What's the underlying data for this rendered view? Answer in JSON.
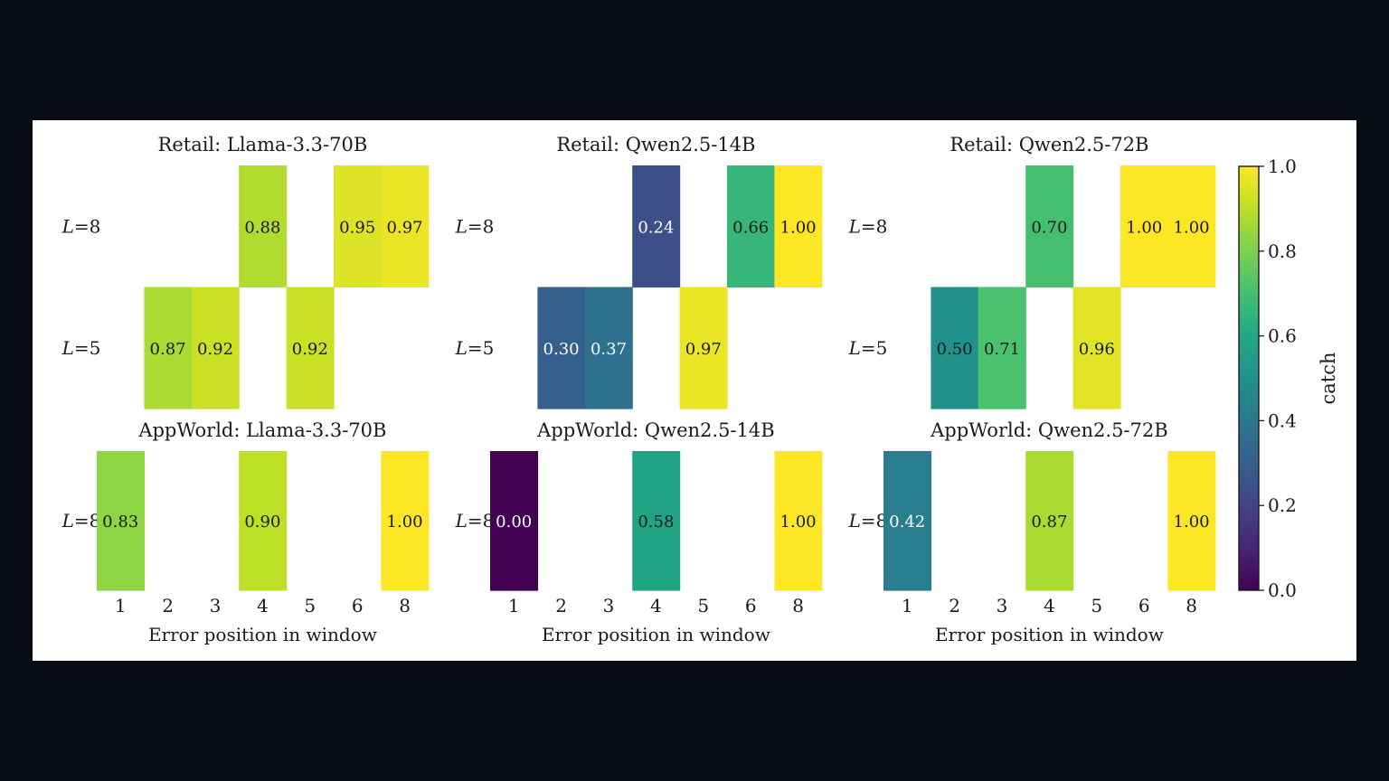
{
  "chart_data": {
    "type": "heatmap",
    "colormap": "viridis",
    "vmin": 0.0,
    "vmax": 1.0,
    "x_categories": [
      "1",
      "2",
      "3",
      "4",
      "5",
      "6",
      "8"
    ],
    "xlabel": "Error position in window",
    "colorbar": {
      "label": "catch",
      "ticks": [
        "0.0",
        "0.2",
        "0.4",
        "0.6",
        "0.8",
        "1.0"
      ]
    },
    "panels": [
      {
        "title": "Retail: Llama-3.3-70B",
        "rows": [
          {
            "label": "L",
            "value_label": "8",
            "values": [
              null,
              null,
              null,
              0.88,
              null,
              0.95,
              0.97
            ],
            "texts": [
              "",
              "",
              "",
              "0.88",
              "",
              "0.95",
              "0.97"
            ]
          },
          {
            "label": "L",
            "value_label": "5",
            "values": [
              null,
              0.87,
              0.92,
              null,
              0.92,
              null,
              null
            ],
            "texts": [
              "",
              "0.87",
              "0.92",
              "",
              "0.92",
              "",
              ""
            ]
          }
        ]
      },
      {
        "title": "Retail: Qwen2.5-14B",
        "rows": [
          {
            "label": "L",
            "value_label": "8",
            "values": [
              null,
              null,
              null,
              0.24,
              null,
              0.66,
              1.0
            ],
            "texts": [
              "",
              "",
              "",
              "0.24",
              "",
              "0.66",
              "1.00"
            ]
          },
          {
            "label": "L",
            "value_label": "5",
            "values": [
              null,
              0.3,
              0.37,
              null,
              0.97,
              null,
              null
            ],
            "texts": [
              "",
              "0.30",
              "0.37",
              "",
              "0.97",
              "",
              ""
            ]
          }
        ]
      },
      {
        "title": "Retail: Qwen2.5-72B",
        "rows": [
          {
            "label": "L",
            "value_label": "8",
            "values": [
              null,
              null,
              null,
              0.7,
              null,
              1.0,
              1.0
            ],
            "texts": [
              "",
              "",
              "",
              "0.70",
              "",
              "1.00",
              "1.00"
            ]
          },
          {
            "label": "L",
            "value_label": "5",
            "values": [
              null,
              0.5,
              0.71,
              null,
              0.96,
              null,
              null
            ],
            "texts": [
              "",
              "0.50",
              "0.71",
              "",
              "0.96",
              "",
              ""
            ]
          }
        ]
      },
      {
        "title": "AppWorld: Llama-3.3-70B",
        "rows": [
          {
            "label": "L",
            "value_label": "8",
            "values": [
              0.83,
              null,
              null,
              0.9,
              null,
              null,
              1.0
            ],
            "texts": [
              "0.83",
              "",
              "",
              "0.90",
              "",
              "",
              "1.00"
            ]
          }
        ]
      },
      {
        "title": "AppWorld: Qwen2.5-14B",
        "rows": [
          {
            "label": "L",
            "value_label": "8",
            "values": [
              0.0,
              null,
              null,
              0.58,
              null,
              null,
              1.0
            ],
            "texts": [
              "0.00",
              "",
              "",
              "0.58",
              "",
              "",
              "1.00"
            ]
          }
        ]
      },
      {
        "title": "AppWorld: Qwen2.5-72B",
        "rows": [
          {
            "label": "L",
            "value_label": "8",
            "values": [
              0.42,
              null,
              null,
              0.87,
              null,
              null,
              1.0
            ],
            "texts": [
              "0.42",
              "",
              "",
              "0.87",
              "",
              "",
              "1.00"
            ]
          }
        ]
      }
    ]
  }
}
